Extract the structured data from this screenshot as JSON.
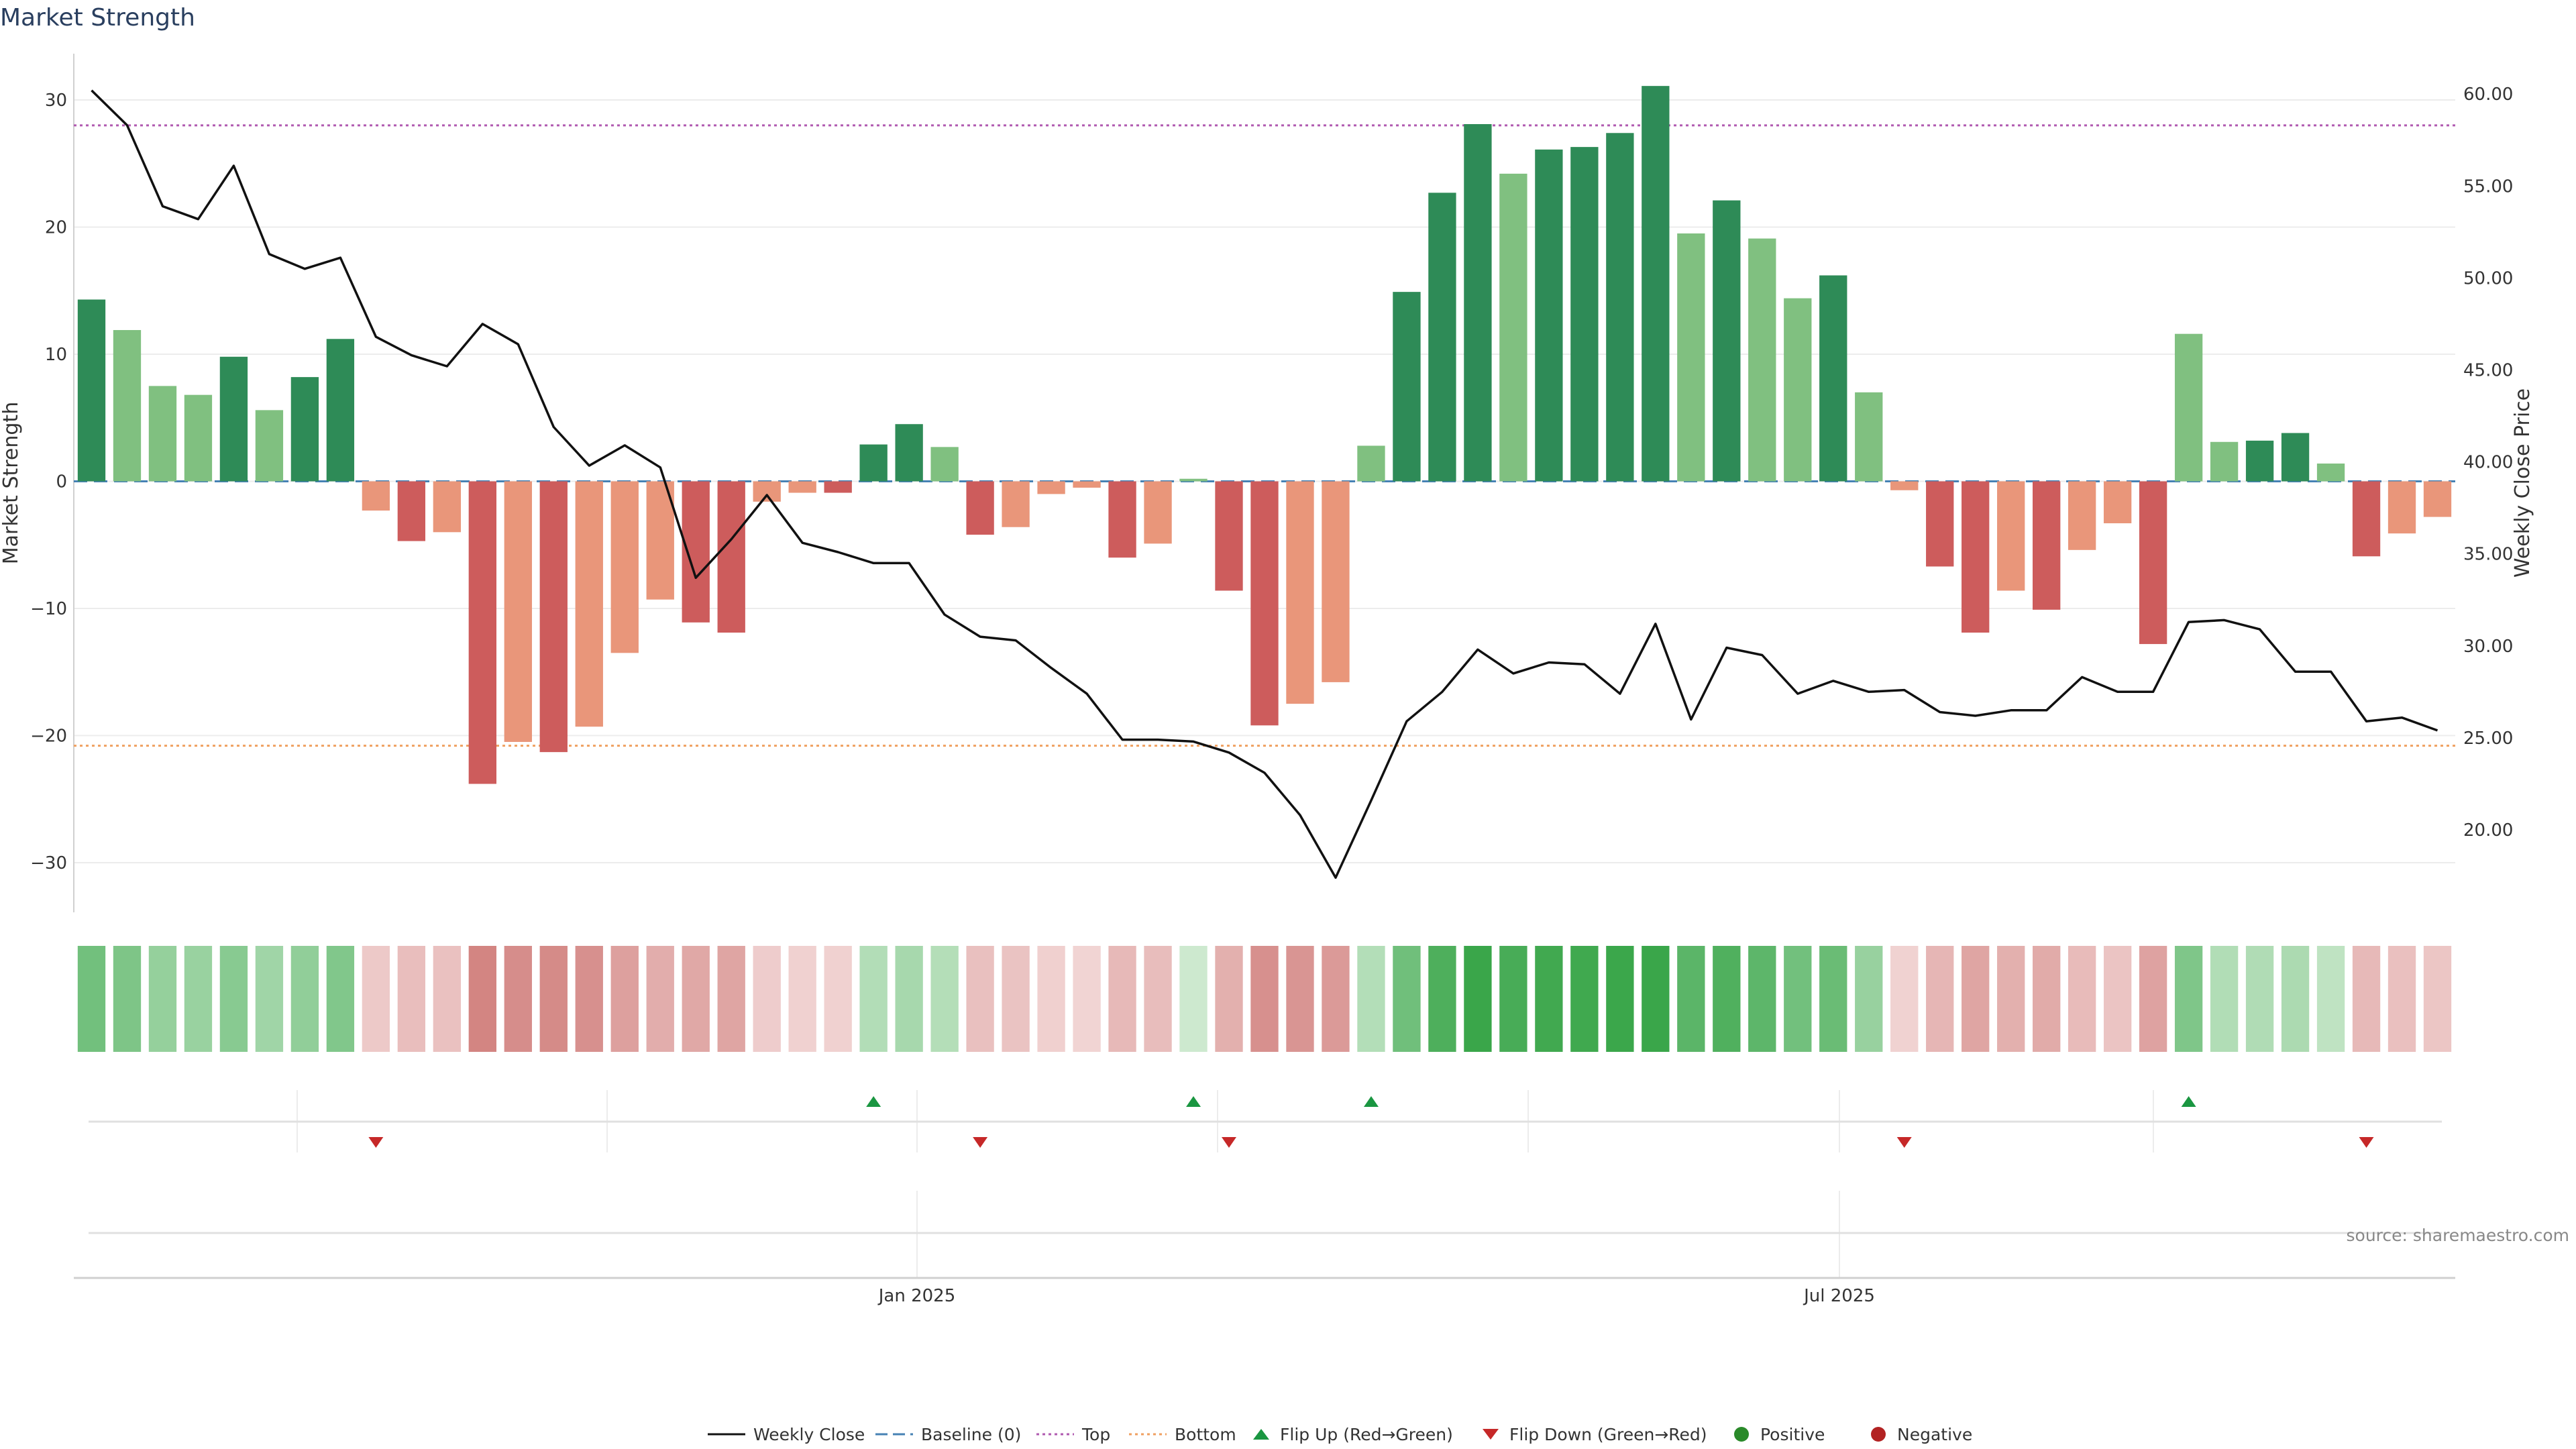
{
  "chart_data": {
    "type": "bar",
    "title": "Market Strength",
    "ylabel": "Market Strength",
    "y2label": "Weekly Close Price",
    "ylim": [
      -33,
      35
    ],
    "y2lim": [
      15.6,
      62
    ],
    "yticks": [
      30,
      20,
      10,
      0,
      -10,
      -20,
      -30
    ],
    "yticklabels": [
      "30",
      "20",
      "10",
      "0",
      "−10",
      "−20",
      "−30"
    ],
    "y2ticks": [
      60,
      55,
      50,
      45,
      40,
      35,
      30,
      25,
      20
    ],
    "y2ticklabels": [
      "60.00",
      "55.00",
      "50.00",
      "45.00",
      "40.00",
      "35.00",
      "30.00",
      "25.00",
      "20.00"
    ],
    "x_labels": [
      "Jan 2025",
      "Jul 2025"
    ],
    "top_line": 28,
    "bottom_line": -20.8,
    "strength": [
      14.3,
      11.9,
      7.5,
      6.8,
      9.8,
      5.6,
      8.2,
      11.2,
      -2.3,
      -4.7,
      -4.0,
      -23.8,
      -20.5,
      -21.3,
      -19.3,
      -13.5,
      -9.3,
      -11.1,
      -11.9,
      -1.6,
      -0.9,
      -0.9,
      2.9,
      4.5,
      2.7,
      -4.2,
      -3.6,
      -1.0,
      -0.5,
      -6.0,
      -4.9,
      0.2,
      -8.6,
      -19.2,
      -17.5,
      -15.8,
      2.8,
      14.9,
      22.7,
      28.1,
      24.2,
      26.1,
      26.3,
      27.4,
      31.1,
      19.5,
      22.1,
      19.1,
      14.4,
      16.2,
      7.0,
      -0.7,
      -6.7,
      -11.9,
      -8.6,
      -10.1,
      -5.4,
      -3.3,
      -12.8,
      11.6,
      3.1,
      3.2,
      3.8,
      1.4,
      -5.9,
      -4.1,
      -2.8
    ],
    "weekly_close": [
      60.2,
      58.3,
      53.9,
      53.2,
      56.1,
      51.3,
      50.5,
      51.1,
      46.8,
      45.8,
      45.2,
      47.5,
      46.4,
      41.9,
      39.8,
      40.9,
      39.7,
      33.7,
      35.8,
      38.2,
      35.6,
      35.1,
      34.5,
      34.5,
      31.7,
      30.5,
      30.3,
      28.8,
      27.4,
      24.9,
      24.9,
      24.8,
      24.2,
      23.1,
      20.8,
      17.4,
      21.6,
      25.9,
      27.5,
      29.8,
      28.5,
      29.1,
      29.0,
      27.4,
      31.2,
      26.0,
      29.9,
      29.5,
      27.4,
      28.1,
      27.5,
      27.6,
      26.4,
      26.2,
      26.5,
      26.5,
      28.3,
      27.5,
      27.5,
      31.3,
      31.4,
      30.9,
      28.6,
      28.6,
      25.9,
      26.1,
      25.4
    ],
    "flip_up_weeks": [
      22,
      31,
      36,
      59
    ],
    "flip_down_weeks": [
      8,
      25,
      32,
      51,
      64
    ],
    "legend": [
      "Weekly Close",
      "Baseline (0)",
      "Top",
      "Bottom",
      "Flip Up (Red→Green)",
      "Flip Down (Green→Red)",
      "Positive",
      "Negative"
    ],
    "source": "source: sharemaestro.com"
  },
  "colors": {
    "pos_dark": "#2e8b57",
    "pos_light": "#80c080",
    "neg_dark": "#cd5c5c",
    "neg_light": "#e9967a",
    "line": "#111111",
    "baseline": "#4682b4",
    "top": "#b05ab0",
    "bottom": "#f0a060",
    "flip_up": "#1a9641",
    "flip_down": "#c62828",
    "positive_marker": "#2a8a2a",
    "negative_marker": "#b22222"
  }
}
